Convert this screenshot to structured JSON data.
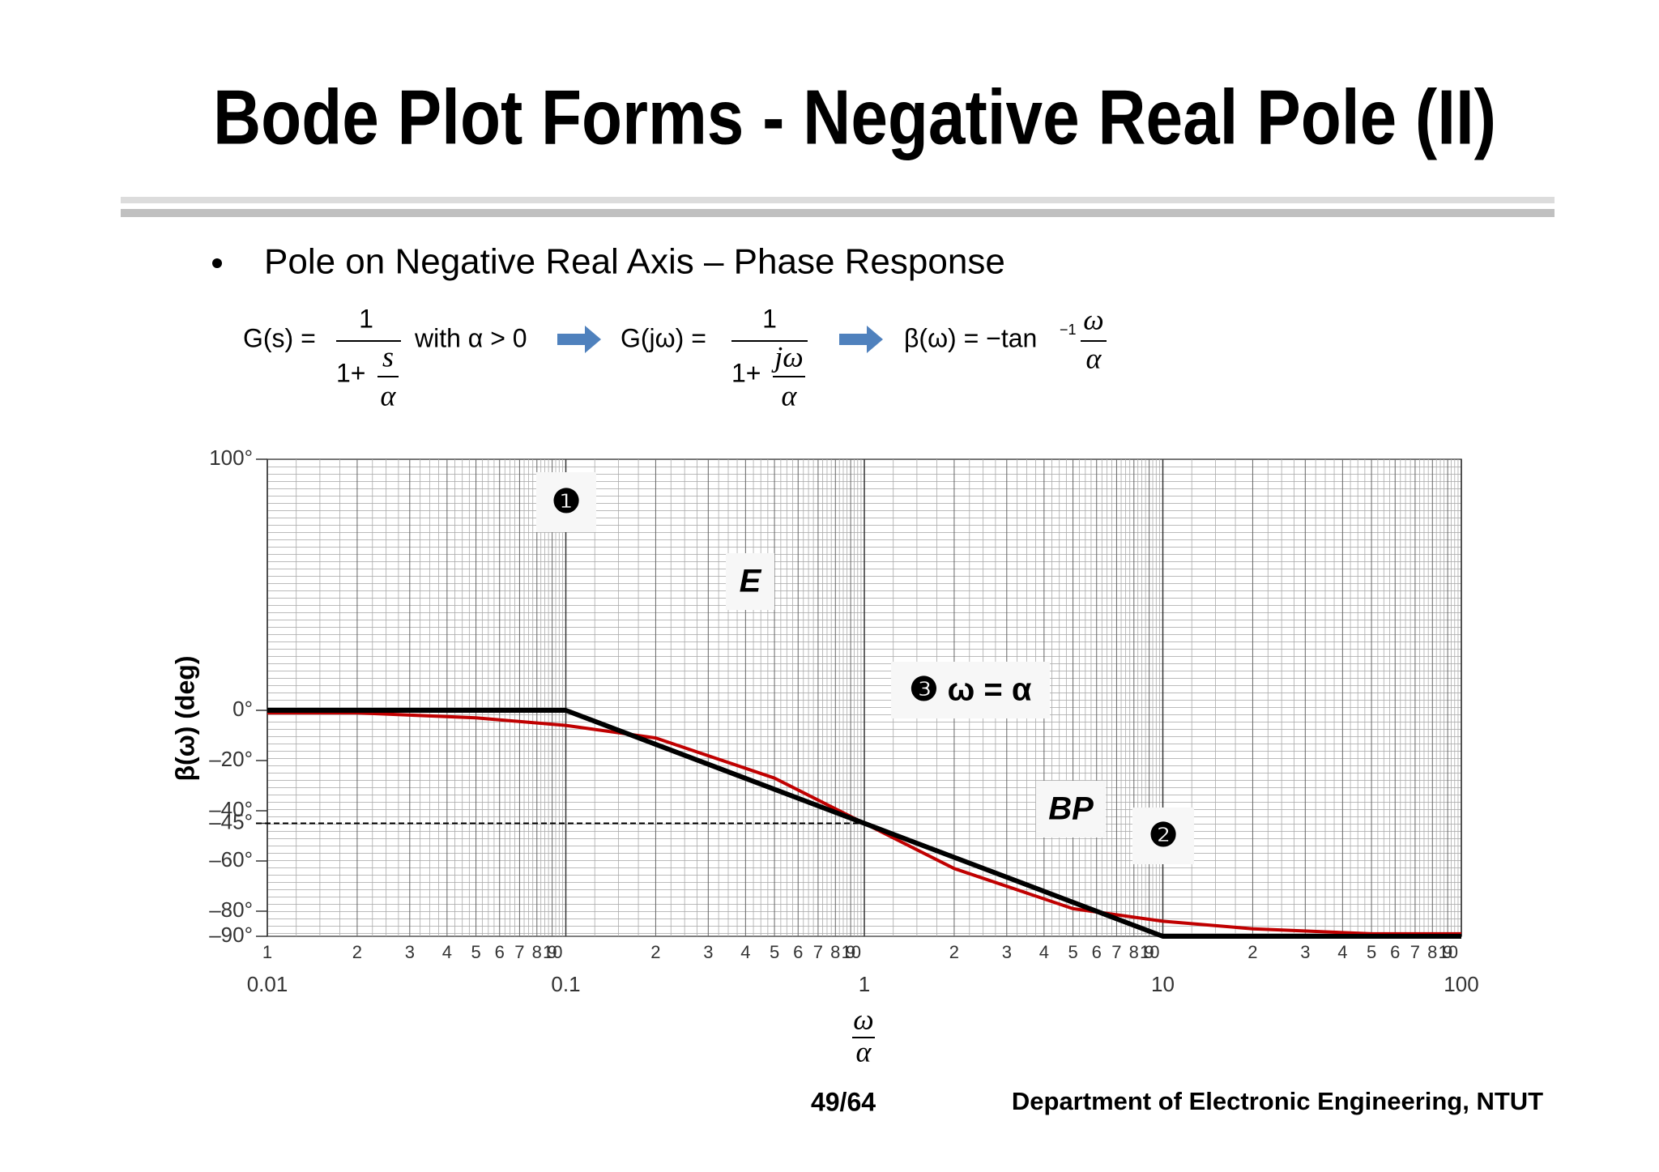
{
  "title": "Bode Plot Forms - Negative Real Pole (II)",
  "bullet": "Pole on Negative Real Axis – Phase Response",
  "equations": {
    "g_s": "G(s) =",
    "one": "1",
    "one_plus": "1+",
    "s": "s",
    "alpha": "α",
    "condition": "with α > 0",
    "g_jw": "G(jω) =",
    "jw": "jω",
    "beta": "β(ω) = −tan",
    "inverse": "−1",
    "omega": "ω"
  },
  "footer": {
    "page": "49/64",
    "department": "Department of Electronic Engineering, NTUT"
  },
  "chart_data": {
    "type": "line",
    "ylabel": "β(ω)  (deg)",
    "xlabel_num": "ω",
    "xlabel_den": "α",
    "log_x": true,
    "xlim": [
      0.01,
      100
    ],
    "xticks": [
      0.01,
      0.1,
      1,
      10,
      100
    ],
    "x_minor_labels": [
      1,
      2,
      3,
      4,
      5,
      6,
      7,
      8,
      9,
      10
    ],
    "ylim": [
      -90,
      100
    ],
    "yticks": [
      {
        "value": 100,
        "label": "100°"
      },
      {
        "value": 0,
        "label": "0°"
      },
      {
        "value": -20,
        "label": "–20°"
      },
      {
        "value": -40,
        "label": "–40°"
      },
      {
        "value": -45,
        "label": "–45°"
      },
      {
        "value": -60,
        "label": "–60°"
      },
      {
        "value": -80,
        "label": "–80°"
      },
      {
        "value": -90,
        "label": "–90°"
      }
    ],
    "grid": true,
    "reference_line": {
      "y": -45,
      "x": 1
    },
    "series": [
      {
        "name": "E",
        "color": "#c00000",
        "x": [
          0.01,
          0.02,
          0.05,
          0.1,
          0.2,
          0.5,
          1,
          2,
          5,
          10,
          20,
          50,
          100
        ],
        "values": [
          -1,
          -1,
          -3,
          -6,
          -11,
          -27,
          -45,
          -63,
          -79,
          -84,
          -87,
          -89,
          -89
        ]
      },
      {
        "name": "BP",
        "color": "#000000",
        "x": [
          0.01,
          0.1,
          10,
          100
        ],
        "values": [
          0,
          0,
          -90,
          -90
        ]
      }
    ],
    "annotations": [
      "❶",
      "❷",
      "❸ ω = α"
    ]
  }
}
